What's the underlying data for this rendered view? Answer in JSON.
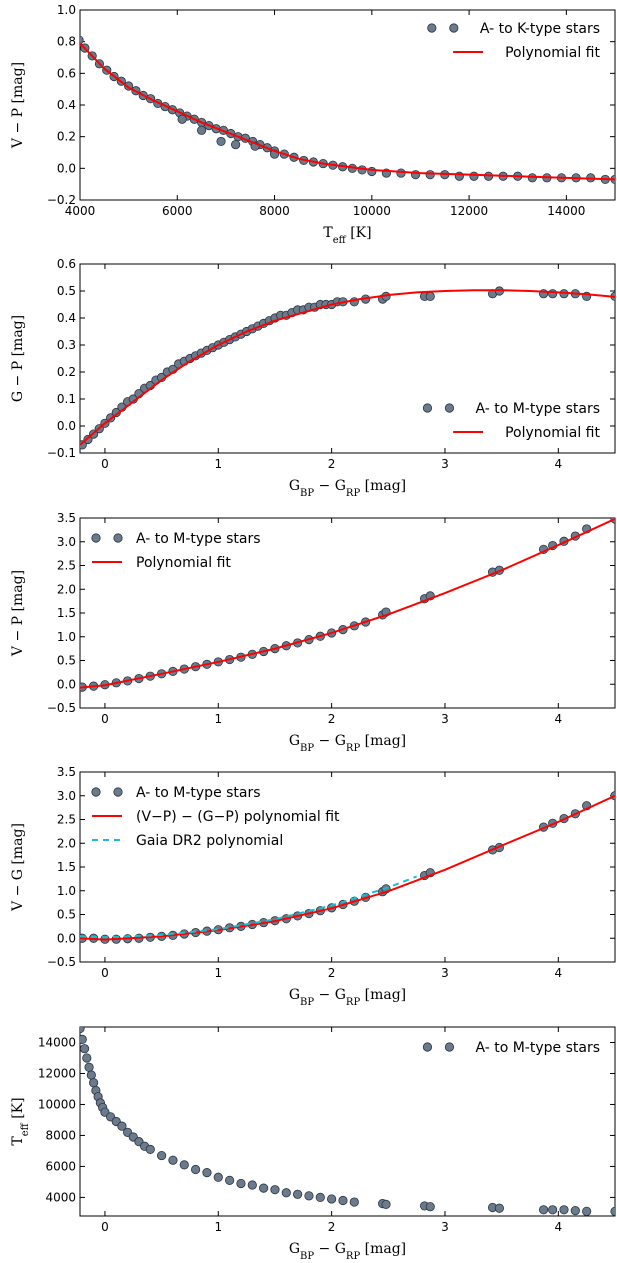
{
  "chart_data": [
    {
      "type": "scatter",
      "ylabel": "V − P [mag]",
      "xlabel": "T_eff [K]",
      "xlim": [
        4000,
        15000
      ],
      "ylim": [
        -0.2,
        1.0
      ],
      "xticks": [
        4000,
        6000,
        8000,
        10000,
        12000,
        14000
      ],
      "yticks": [
        -0.2,
        0.0,
        0.2,
        0.4,
        0.6,
        0.8,
        1.0
      ],
      "legend_position": "top-right",
      "grid": false,
      "series": [
        {
          "name": "A- to K-type stars",
          "kind": "scatter",
          "x": [
            3980,
            4100,
            4250,
            4400,
            4550,
            4700,
            4850,
            5000,
            5150,
            5300,
            5450,
            5600,
            5750,
            5900,
            6050,
            6200,
            6350,
            6500,
            6650,
            6800,
            6950,
            7100,
            7250,
            7400,
            7550,
            7700,
            7850,
            8000,
            8200,
            8400,
            8600,
            8800,
            9000,
            9200,
            9400,
            9600,
            9800,
            10000,
            10300,
            10600,
            10900,
            11200,
            11500,
            11800,
            12100,
            12400,
            12700,
            13000,
            13300,
            13600,
            13900,
            14200,
            14500,
            14800,
            15000,
            6100,
            6500,
            6900,
            7200,
            7600,
            8000
          ],
          "y": [
            0.81,
            0.76,
            0.71,
            0.66,
            0.62,
            0.58,
            0.55,
            0.52,
            0.49,
            0.46,
            0.44,
            0.41,
            0.39,
            0.37,
            0.35,
            0.33,
            0.31,
            0.29,
            0.27,
            0.25,
            0.24,
            0.22,
            0.2,
            0.19,
            0.17,
            0.15,
            0.13,
            0.11,
            0.09,
            0.07,
            0.05,
            0.04,
            0.03,
            0.02,
            0.01,
            0.0,
            -0.01,
            -0.02,
            -0.03,
            -0.03,
            -0.04,
            -0.04,
            -0.04,
            -0.05,
            -0.05,
            -0.05,
            -0.05,
            -0.05,
            -0.06,
            -0.06,
            -0.06,
            -0.06,
            -0.06,
            -0.07,
            -0.07,
            0.31,
            0.24,
            0.17,
            0.15,
            0.14,
            0.09
          ]
        },
        {
          "name": "Polynomial fit",
          "kind": "line",
          "color": "#ff0000",
          "x": [
            4000,
            4500,
            5000,
            5500,
            6000,
            6500,
            7000,
            7500,
            8000,
            8500,
            9000,
            9500,
            10000,
            10500,
            11000,
            12000,
            13000,
            14000,
            15000
          ],
          "y": [
            0.79,
            0.63,
            0.51,
            0.43,
            0.36,
            0.29,
            0.23,
            0.17,
            0.11,
            0.06,
            0.03,
            0.01,
            -0.01,
            -0.02,
            -0.03,
            -0.04,
            -0.05,
            -0.06,
            -0.07
          ]
        }
      ]
    },
    {
      "type": "scatter",
      "ylabel": "G − P [mag]",
      "xlabel": "G_BP − G_RP [mag]",
      "xlim": [
        -0.22,
        4.5
      ],
      "ylim": [
        -0.1,
        0.6
      ],
      "xticks": [
        0,
        1,
        2,
        3,
        4
      ],
      "yticks": [
        -0.1,
        0.0,
        0.1,
        0.2,
        0.3,
        0.4,
        0.5,
        0.6
      ],
      "legend_position": "lower-right",
      "grid": false,
      "series": [
        {
          "name": "A- to M-type stars",
          "kind": "scatter",
          "x": [
            -0.2,
            -0.15,
            -0.1,
            -0.05,
            0.0,
            0.05,
            0.1,
            0.15,
            0.2,
            0.25,
            0.3,
            0.35,
            0.4,
            0.45,
            0.5,
            0.55,
            0.6,
            0.65,
            0.7,
            0.75,
            0.8,
            0.85,
            0.9,
            0.95,
            1.0,
            1.05,
            1.1,
            1.15,
            1.2,
            1.25,
            1.3,
            1.35,
            1.4,
            1.45,
            1.5,
            1.55,
            1.6,
            1.65,
            1.7,
            1.75,
            1.8,
            1.85,
            1.9,
            1.95,
            2.0,
            2.05,
            2.1,
            2.2,
            2.3,
            2.45,
            2.48,
            2.82,
            2.87,
            3.42,
            3.48,
            3.87,
            3.95,
            4.05,
            4.15,
            4.25,
            4.5
          ],
          "y": [
            -0.07,
            -0.05,
            -0.03,
            -0.01,
            0.01,
            0.03,
            0.05,
            0.07,
            0.09,
            0.1,
            0.12,
            0.14,
            0.15,
            0.17,
            0.18,
            0.2,
            0.21,
            0.23,
            0.24,
            0.25,
            0.26,
            0.27,
            0.28,
            0.29,
            0.3,
            0.31,
            0.32,
            0.33,
            0.34,
            0.35,
            0.36,
            0.37,
            0.38,
            0.39,
            0.4,
            0.41,
            0.41,
            0.42,
            0.43,
            0.43,
            0.44,
            0.44,
            0.45,
            0.45,
            0.45,
            0.46,
            0.46,
            0.46,
            0.47,
            0.47,
            0.48,
            0.48,
            0.48,
            0.49,
            0.5,
            0.49,
            0.49,
            0.49,
            0.49,
            0.48,
            0.48
          ]
        },
        {
          "name": "Polynomial fit",
          "kind": "line",
          "color": "#ff0000",
          "x": [
            -0.22,
            0.0,
            0.25,
            0.5,
            0.75,
            1.0,
            1.25,
            1.5,
            1.75,
            2.0,
            2.25,
            2.5,
            2.75,
            3.0,
            3.25,
            3.5,
            3.75,
            4.0,
            4.25,
            4.5
          ],
          "y": [
            -0.07,
            0.01,
            0.09,
            0.17,
            0.24,
            0.3,
            0.35,
            0.39,
            0.42,
            0.45,
            0.47,
            0.485,
            0.495,
            0.5,
            0.503,
            0.503,
            0.5,
            0.495,
            0.488,
            0.478
          ]
        }
      ]
    },
    {
      "type": "scatter",
      "ylabel": "V − P [mag]",
      "xlabel": "G_BP − G_RP [mag]",
      "xlim": [
        -0.22,
        4.5
      ],
      "ylim": [
        -0.5,
        3.5
      ],
      "xticks": [
        0,
        1,
        2,
        3,
        4
      ],
      "yticks": [
        -0.5,
        0.0,
        0.5,
        1.0,
        1.5,
        2.0,
        2.5,
        3.0,
        3.5
      ],
      "legend_position": "top-left",
      "grid": false,
      "series": [
        {
          "name": "A- to M-type stars",
          "kind": "scatter",
          "x": [
            -0.2,
            -0.1,
            0.0,
            0.1,
            0.2,
            0.3,
            0.4,
            0.5,
            0.6,
            0.7,
            0.8,
            0.9,
            1.0,
            1.1,
            1.2,
            1.3,
            1.4,
            1.5,
            1.6,
            1.7,
            1.8,
            1.9,
            2.0,
            2.1,
            2.2,
            2.3,
            2.45,
            2.48,
            2.82,
            2.87,
            3.42,
            3.48,
            3.87,
            3.95,
            4.05,
            4.15,
            4.25,
            4.5
          ],
          "y": [
            -0.06,
            -0.04,
            -0.01,
            0.03,
            0.07,
            0.12,
            0.17,
            0.22,
            0.27,
            0.32,
            0.37,
            0.42,
            0.47,
            0.52,
            0.57,
            0.63,
            0.69,
            0.75,
            0.81,
            0.87,
            0.94,
            1.01,
            1.08,
            1.15,
            1.23,
            1.31,
            1.46,
            1.52,
            1.8,
            1.86,
            2.36,
            2.4,
            2.84,
            2.92,
            3.01,
            3.12,
            3.27,
            3.48
          ]
        },
        {
          "name": "Polynomial fit",
          "kind": "line",
          "color": "#ff0000",
          "x": [
            -0.22,
            0.0,
            0.5,
            1.0,
            1.5,
            2.0,
            2.5,
            3.0,
            3.5,
            4.0,
            4.5
          ],
          "y": [
            -0.07,
            -0.02,
            0.22,
            0.47,
            0.75,
            1.08,
            1.47,
            1.92,
            2.4,
            2.93,
            3.48
          ]
        }
      ]
    },
    {
      "type": "scatter",
      "ylabel": "V − G [mag]",
      "xlabel": "G_BP − G_RP [mag]",
      "xlim": [
        -0.22,
        4.5
      ],
      "ylim": [
        -0.5,
        3.5
      ],
      "xticks": [
        0,
        1,
        2,
        3,
        4
      ],
      "yticks": [
        -0.5,
        0.0,
        0.5,
        1.0,
        1.5,
        2.0,
        2.5,
        3.0,
        3.5
      ],
      "legend_position": "top-left",
      "grid": false,
      "series": [
        {
          "name": "A- to M-type stars",
          "kind": "scatter",
          "x": [
            -0.2,
            -0.1,
            0.0,
            0.1,
            0.2,
            0.3,
            0.4,
            0.5,
            0.6,
            0.7,
            0.8,
            0.9,
            1.0,
            1.1,
            1.2,
            1.3,
            1.4,
            1.5,
            1.6,
            1.7,
            1.8,
            1.9,
            2.0,
            2.1,
            2.2,
            2.3,
            2.45,
            2.48,
            2.82,
            2.87,
            3.42,
            3.48,
            3.87,
            3.95,
            4.05,
            4.15,
            4.25,
            4.5
          ],
          "y": [
            0.0,
            0.0,
            -0.02,
            -0.02,
            -0.01,
            0.0,
            0.02,
            0.04,
            0.06,
            0.09,
            0.12,
            0.15,
            0.18,
            0.22,
            0.25,
            0.29,
            0.33,
            0.37,
            0.41,
            0.47,
            0.52,
            0.58,
            0.64,
            0.71,
            0.78,
            0.86,
            0.98,
            1.04,
            1.32,
            1.38,
            1.86,
            1.91,
            2.34,
            2.42,
            2.52,
            2.62,
            2.79,
            3.0
          ]
        },
        {
          "name": "(V−P) − (G−P) polynomial fit",
          "kind": "line",
          "color": "#ff0000",
          "x": [
            -0.22,
            0.0,
            0.5,
            1.0,
            1.5,
            2.0,
            2.5,
            3.0,
            3.5,
            4.0,
            4.5
          ],
          "y": [
            0.0,
            -0.03,
            0.04,
            0.17,
            0.36,
            0.63,
            0.99,
            1.44,
            1.95,
            2.45,
            3.0
          ]
        },
        {
          "name": "Gaia DR2 polynomial",
          "kind": "dashed-line",
          "color": "#17becf",
          "x": [
            -0.22,
            0.0,
            0.5,
            1.0,
            1.5,
            2.0,
            2.5,
            2.75
          ],
          "y": [
            0.04,
            0.02,
            0.07,
            0.19,
            0.4,
            0.69,
            1.07,
            1.3
          ]
        }
      ]
    },
    {
      "type": "scatter",
      "ylabel": "T_eff [K]",
      "xlabel": "G_BP − G_RP [mag]",
      "xlim": [
        -0.22,
        4.5
      ],
      "ylim": [
        2800,
        15000
      ],
      "xticks": [
        0,
        1,
        2,
        3,
        4
      ],
      "yticks": [
        4000,
        6000,
        8000,
        10000,
        12000,
        14000
      ],
      "legend_position": "top-right",
      "grid": false,
      "series": [
        {
          "name": "A- to M-type stars",
          "kind": "scatter",
          "x": [
            -0.22,
            -0.2,
            -0.18,
            -0.16,
            -0.14,
            -0.12,
            -0.1,
            -0.08,
            -0.06,
            -0.04,
            -0.02,
            0.0,
            0.05,
            0.1,
            0.15,
            0.2,
            0.25,
            0.3,
            0.35,
            0.4,
            0.5,
            0.6,
            0.7,
            0.8,
            0.9,
            1.0,
            1.1,
            1.2,
            1.3,
            1.4,
            1.5,
            1.6,
            1.7,
            1.8,
            1.9,
            2.0,
            2.1,
            2.2,
            2.45,
            2.48,
            2.82,
            2.87,
            3.42,
            3.48,
            3.87,
            3.95,
            4.05,
            4.15,
            4.25,
            4.5
          ],
          "y": [
            14900,
            14200,
            13600,
            13000,
            12400,
            11900,
            11400,
            10900,
            10500,
            10100,
            9800,
            9500,
            9200,
            8900,
            8600,
            8200,
            7900,
            7600,
            7300,
            7100,
            6700,
            6400,
            6100,
            5800,
            5600,
            5300,
            5100,
            4900,
            4800,
            4600,
            4500,
            4300,
            4200,
            4100,
            4000,
            3900,
            3800,
            3700,
            3600,
            3550,
            3450,
            3400,
            3350,
            3300,
            3200,
            3200,
            3200,
            3150,
            3100,
            3100
          ]
        }
      ]
    }
  ]
}
